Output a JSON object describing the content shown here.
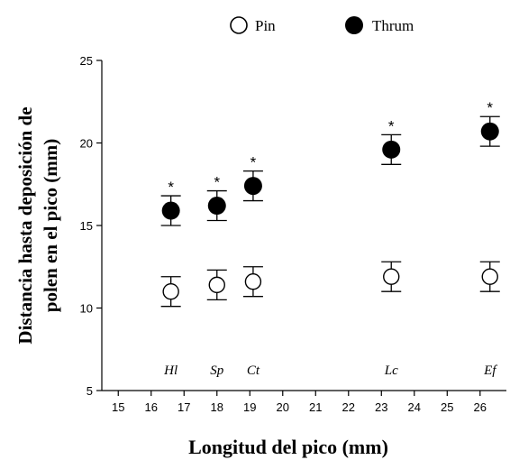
{
  "chart_data": {
    "type": "scatter",
    "title": "",
    "xlabel": "Longitud del pico (mm)",
    "ylabel_line1": "Distancia hasta deposición de",
    "ylabel_line2": "polen en el pico (mm)",
    "xlim": [
      14.5,
      26.8
    ],
    "ylim": [
      5,
      25
    ],
    "x_ticks": [
      15,
      16,
      17,
      18,
      19,
      20,
      21,
      22,
      23,
      24,
      25,
      26
    ],
    "y_ticks": [
      5,
      10,
      15,
      20,
      25
    ],
    "grid": false,
    "legend": {
      "placement": "top",
      "entries": [
        "Pin",
        "Thrum"
      ]
    },
    "significance_marker": "*",
    "species": [
      {
        "abbr": "Hl",
        "x": 16.6
      },
      {
        "abbr": "Sp",
        "x": 18.0
      },
      {
        "abbr": "Ct",
        "x": 19.1
      },
      {
        "abbr": "Lc",
        "x": 23.3
      },
      {
        "abbr": "Ef",
        "x": 26.3
      }
    ],
    "series": [
      {
        "name": "Pin",
        "style": "open",
        "x": [
          16.6,
          18.0,
          19.1,
          23.3,
          26.3
        ],
        "y": [
          11.0,
          11.4,
          11.6,
          11.9,
          11.9
        ],
        "err": [
          0.9,
          0.9,
          0.9,
          0.9,
          0.9
        ],
        "significant": [
          false,
          false,
          false,
          false,
          false
        ]
      },
      {
        "name": "Thrum",
        "style": "filled",
        "x": [
          16.6,
          18.0,
          19.1,
          23.3,
          26.3
        ],
        "y": [
          15.9,
          16.2,
          17.4,
          19.6,
          20.7
        ],
        "err": [
          0.9,
          0.9,
          0.9,
          0.9,
          0.9
        ],
        "significant": [
          true,
          true,
          true,
          true,
          true
        ]
      }
    ],
    "colors": {
      "axis": "#000000",
      "marker_fill": "#000000",
      "open_fill": "#ffffff"
    }
  }
}
